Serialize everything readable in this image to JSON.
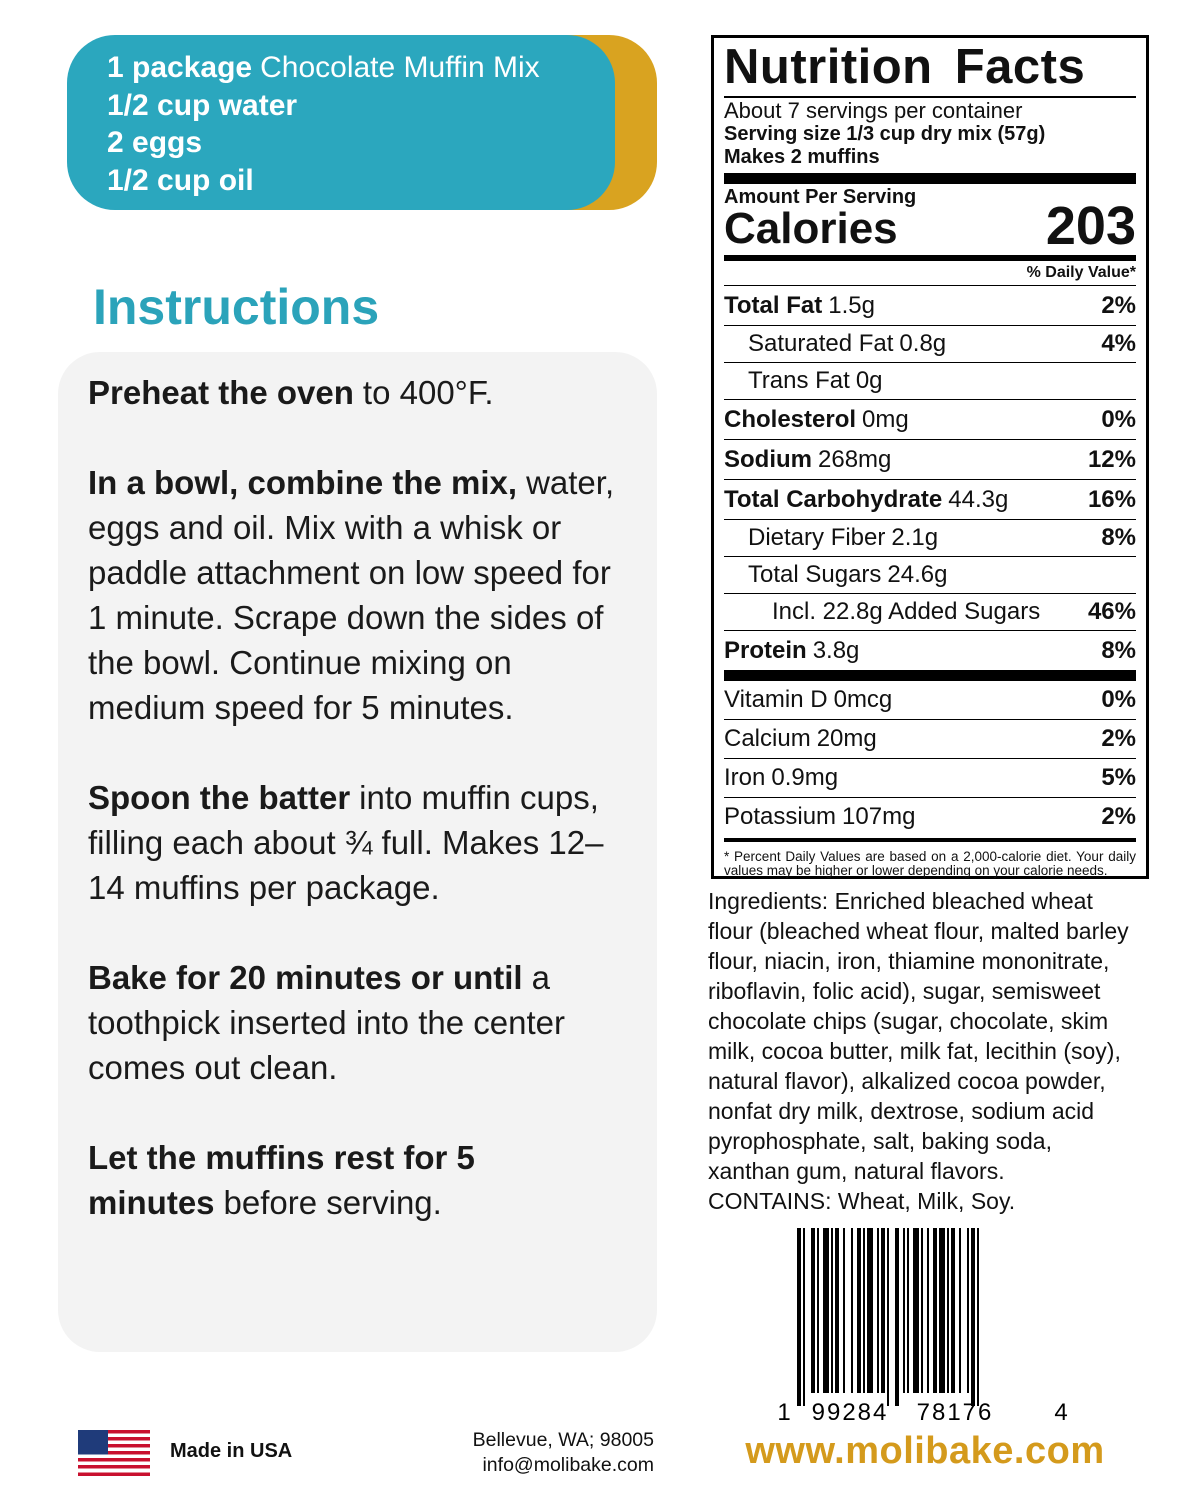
{
  "recipe": [
    {
      "bold": "1 package",
      "rest": "Chocolate Muffin Mix"
    },
    {
      "bold": "1/2 cup water"
    },
    {
      "bold": "2 eggs"
    },
    {
      "bold": "1/2 cup oil"
    }
  ],
  "instructions": {
    "title": "Instructions",
    "steps": [
      {
        "bold": "Preheat the oven",
        "rest": "to 400°F."
      },
      {
        "bold": "In a bowl, combine the mix,",
        "rest": "water, eggs and oil. Mix with a whisk or paddle attachment on low speed for 1 minute. Scrape down the sides of the bowl. Continue mixing on medium speed for 5 minutes."
      },
      {
        "bold": "Spoon the batter",
        "rest": "into muffin cups, filling each about ¾ full. Makes 12–14 muffins per package."
      },
      {
        "bold": "Bake for 20 minutes or until",
        "rest": "a toothpick inserted into the center comes out clean."
      },
      {
        "bold": "Let the muffins rest for 5 minutes",
        "rest": "before serving."
      }
    ]
  },
  "nutrition": {
    "title": "Nutrition Facts",
    "servings": "About 7 servings per container",
    "serving_size": "Serving size 1/3 cup dry mix (57g)",
    "makes": "Makes 2 muffins",
    "amount_per_serving": "Amount Per Serving",
    "calories_label": "Calories",
    "calories": "203",
    "dv_header": "% Daily Value*",
    "nutrients": [
      {
        "name": "Total Fat",
        "amount": "1.5g",
        "dv": "2%",
        "sub": [
          {
            "name": "Saturated Fat",
            "amount": "0.8g",
            "dv": "4%"
          },
          {
            "name": "Trans Fat",
            "amount": "0g"
          }
        ]
      },
      {
        "name": "Cholesterol",
        "amount": "0mg",
        "dv": "0%"
      },
      {
        "name": "Sodium",
        "amount": "268mg",
        "dv": "12%"
      },
      {
        "name": "Total Carbohydrate",
        "amount": "44.3g",
        "dv": "16%",
        "sub": [
          {
            "name": "Dietary Fiber",
            "amount": "2.1g",
            "dv": "8%"
          },
          {
            "name": "Total Sugars",
            "amount": "24.6g",
            "sub": [
              {
                "name": "Incl. 22.8g Added Sugars",
                "dv": "46%"
              }
            ]
          }
        ]
      },
      {
        "name": "Protein",
        "amount": "3.8g",
        "dv": "8%"
      }
    ],
    "vitamins": [
      {
        "name": "Vitamin D",
        "amount": "0mcg",
        "dv": "0%"
      },
      {
        "name": "Calcium",
        "amount": "20mg",
        "dv": "2%"
      },
      {
        "name": "Iron",
        "amount": "0.9mg",
        "dv": "5%"
      },
      {
        "name": "Potassium",
        "amount": "107mg",
        "dv": "2%"
      }
    ],
    "footnote": "* Percent Daily Values are based on a 2,000-calorie diet. Your daily values may be higher or lower depending on your calorie needs."
  },
  "ingredients": [
    "Ingredients: Enriched bleached wheat",
    "flour (bleached wheat flour, malted barley",
    "flour, niacin, iron, thiamine mononitrate,",
    "riboflavin, folic acid), sugar, semisweet",
    "chocolate chips (sugar, chocolate, skim",
    "milk, cocoa butter, milk fat, lecithin (soy),",
    "natural flavor), alkalized cocoa powder,",
    "nonfat dry milk, dextrose, sodium acid",
    "pyrophosphate, salt, baking soda,",
    "xanthan gum, natural flavors.",
    "CONTAINS: Wheat, Milk, Soy."
  ],
  "barcode": [
    "1",
    "99284",
    "78176",
    "4"
  ],
  "footer": {
    "origin": "Made in USA",
    "address": "Bellevue, WA; 98005",
    "email": "info@molibake.com",
    "website": "www.molibake.com"
  }
}
